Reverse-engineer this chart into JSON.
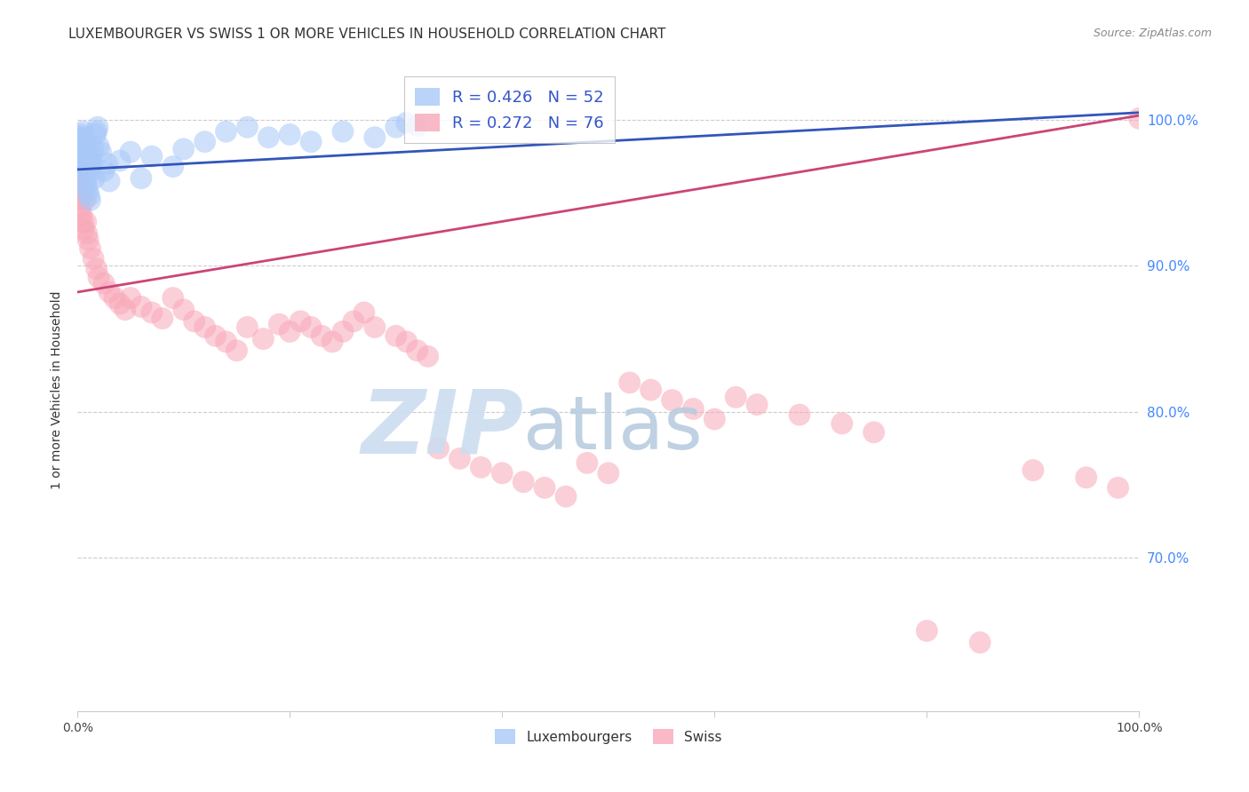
{
  "title": "LUXEMBOURGER VS SWISS 1 OR MORE VEHICLES IN HOUSEHOLD CORRELATION CHART",
  "source": "Source: ZipAtlas.com",
  "ylabel": "1 or more Vehicles in Household",
  "xlim": [
    0.0,
    1.0
  ],
  "ylim": [
    0.595,
    1.035
  ],
  "yticks": [
    0.7,
    0.8,
    0.9,
    1.0
  ],
  "ytick_labels": [
    "70.0%",
    "80.0%",
    "90.0%",
    "100.0%"
  ],
  "xtick_labels": [
    "0.0%",
    "100.0%"
  ],
  "xtick_positions": [
    0.0,
    1.0
  ],
  "legend_entries": [
    {
      "label": "Luxembourgers",
      "color": "#a8c8f8",
      "R": 0.426,
      "N": 52
    },
    {
      "label": "Swiss",
      "color": "#f8a8b8",
      "R": 0.272,
      "N": 76
    }
  ],
  "blue_color": "#a8c8f8",
  "pink_color": "#f8a8b8",
  "blue_line_color": "#3355bb",
  "pink_line_color": "#cc4477",
  "blue_line_x": [
    0.0,
    1.0
  ],
  "blue_line_y": [
    0.966,
    1.005
  ],
  "pink_line_x": [
    0.0,
    1.0
  ],
  "pink_line_y": [
    0.882,
    1.003
  ],
  "background_color": "#ffffff",
  "grid_color": "#cccccc",
  "watermark_zip": "ZIP",
  "watermark_atlas": "atlas",
  "watermark_color_zip": "#c8ddf0",
  "watermark_color_atlas": "#b8cce4",
  "title_fontsize": 11,
  "label_fontsize": 10,
  "tick_fontsize": 10,
  "legend_fontsize": 13,
  "blue_scatter": {
    "x": [
      0.001,
      0.002,
      0.002,
      0.003,
      0.003,
      0.004,
      0.004,
      0.005,
      0.005,
      0.006,
      0.006,
      0.007,
      0.007,
      0.008,
      0.008,
      0.009,
      0.009,
      0.01,
      0.01,
      0.011,
      0.011,
      0.012,
      0.012,
      0.013,
      0.014,
      0.015,
      0.016,
      0.017,
      0.018,
      0.019,
      0.02,
      0.022,
      0.025,
      0.028,
      0.03,
      0.04,
      0.05,
      0.06,
      0.07,
      0.09,
      0.1,
      0.12,
      0.14,
      0.16,
      0.18,
      0.2,
      0.22,
      0.25,
      0.28,
      0.3,
      0.31,
      0.32
    ],
    "y": [
      0.985,
      0.988,
      0.975,
      0.99,
      0.972,
      0.986,
      0.968,
      0.992,
      0.97,
      0.988,
      0.966,
      0.984,
      0.962,
      0.98,
      0.958,
      0.976,
      0.955,
      0.972,
      0.951,
      0.968,
      0.948,
      0.964,
      0.945,
      0.975,
      0.968,
      0.98,
      0.96,
      0.99,
      0.992,
      0.995,
      0.982,
      0.978,
      0.965,
      0.97,
      0.958,
      0.972,
      0.978,
      0.96,
      0.975,
      0.968,
      0.98,
      0.985,
      0.992,
      0.995,
      0.988,
      0.99,
      0.985,
      0.992,
      0.988,
      0.995,
      0.998,
      0.996
    ]
  },
  "pink_scatter": {
    "x": [
      0.001,
      0.002,
      0.002,
      0.003,
      0.003,
      0.004,
      0.004,
      0.005,
      0.005,
      0.006,
      0.006,
      0.007,
      0.008,
      0.009,
      0.01,
      0.012,
      0.015,
      0.018,
      0.02,
      0.025,
      0.03,
      0.035,
      0.04,
      0.045,
      0.05,
      0.06,
      0.07,
      0.08,
      0.09,
      0.1,
      0.11,
      0.12,
      0.13,
      0.14,
      0.15,
      0.16,
      0.175,
      0.19,
      0.2,
      0.21,
      0.22,
      0.23,
      0.24,
      0.25,
      0.26,
      0.27,
      0.28,
      0.3,
      0.31,
      0.32,
      0.33,
      0.34,
      0.36,
      0.38,
      0.4,
      0.42,
      0.44,
      0.46,
      0.48,
      0.5,
      0.52,
      0.54,
      0.56,
      0.58,
      0.6,
      0.62,
      0.64,
      0.68,
      0.72,
      0.75,
      0.8,
      0.85,
      0.9,
      0.95,
      0.98,
      1.0
    ],
    "y": [
      0.958,
      0.965,
      0.945,
      0.968,
      0.94,
      0.96,
      0.935,
      0.955,
      0.93,
      0.95,
      0.925,
      0.945,
      0.93,
      0.922,
      0.918,
      0.912,
      0.905,
      0.898,
      0.892,
      0.888,
      0.882,
      0.878,
      0.874,
      0.87,
      0.878,
      0.872,
      0.868,
      0.864,
      0.878,
      0.87,
      0.862,
      0.858,
      0.852,
      0.848,
      0.842,
      0.858,
      0.85,
      0.86,
      0.855,
      0.862,
      0.858,
      0.852,
      0.848,
      0.855,
      0.862,
      0.868,
      0.858,
      0.852,
      0.848,
      0.842,
      0.838,
      0.775,
      0.768,
      0.762,
      0.758,
      0.752,
      0.748,
      0.742,
      0.765,
      0.758,
      0.82,
      0.815,
      0.808,
      0.802,
      0.795,
      0.81,
      0.805,
      0.798,
      0.792,
      0.786,
      0.65,
      0.642,
      0.76,
      0.755,
      0.748,
      1.001
    ]
  }
}
